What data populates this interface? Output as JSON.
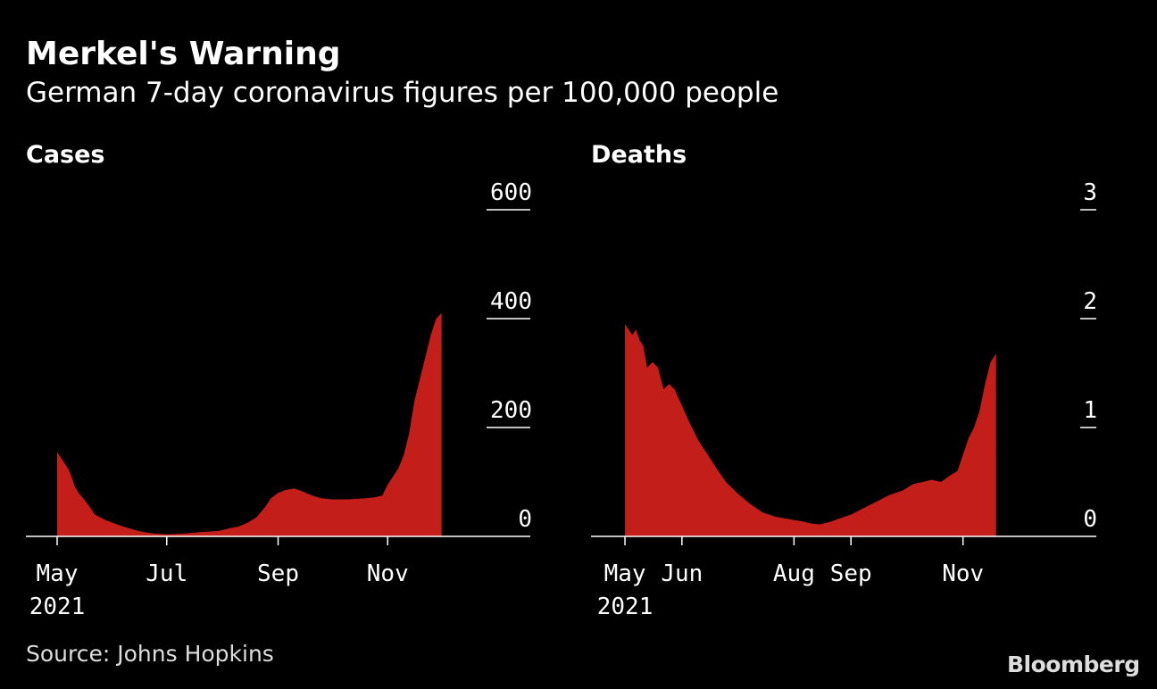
{
  "title": "Merkel's Warning",
  "subtitle": "German 7-day coronavirus figures per 100,000 people",
  "source": "Source: Johns Hopkins",
  "brand": "Bloomberg",
  "colors": {
    "fill": "#c41e1a",
    "background": "#000000",
    "text": "#ffffff"
  },
  "chart_data": [
    {
      "type": "area",
      "title": "Cases",
      "ylim": [
        0,
        600
      ],
      "yticks": [
        0,
        200,
        400,
        600
      ],
      "y_tick_labels": [
        "0",
        "200",
        "400",
        "600"
      ],
      "grid": false,
      "xticks": [
        {
          "date": "2021-05-01",
          "label": "May",
          "sublabel": "2021"
        },
        {
          "date": "2021-07-01",
          "label": "Jul",
          "sublabel": ""
        },
        {
          "date": "2021-09-01",
          "label": "Sep",
          "sublabel": ""
        },
        {
          "date": "2021-11-01",
          "label": "Nov",
          "sublabel": ""
        }
      ],
      "xlim": [
        "2021-05-01",
        "2021-12-31"
      ],
      "series": [
        {
          "x": [
            "2021-05-01",
            "2021-05-03",
            "2021-05-05",
            "2021-05-07",
            "2021-05-09",
            "2021-05-11",
            "2021-05-13",
            "2021-05-16",
            "2021-05-19",
            "2021-05-22",
            "2021-05-25",
            "2021-05-28",
            "2021-06-01",
            "2021-06-05",
            "2021-06-10",
            "2021-06-15",
            "2021-06-20",
            "2021-06-25",
            "2021-07-01",
            "2021-07-10",
            "2021-07-20",
            "2021-07-30",
            "2021-08-05",
            "2021-08-10",
            "2021-08-15",
            "2021-08-20",
            "2021-08-25",
            "2021-08-28",
            "2021-09-01",
            "2021-09-05",
            "2021-09-10",
            "2021-09-15",
            "2021-09-20",
            "2021-09-25",
            "2021-10-01",
            "2021-10-10",
            "2021-10-20",
            "2021-10-25",
            "2021-10-29",
            "2021-11-01",
            "2021-11-04",
            "2021-11-07",
            "2021-11-10",
            "2021-11-13",
            "2021-11-16",
            "2021-11-19",
            "2021-11-22",
            "2021-11-25",
            "2021-11-28",
            "2021-12-01"
          ],
          "y": [
            155,
            145,
            135,
            125,
            110,
            90,
            80,
            68,
            55,
            40,
            35,
            30,
            25,
            20,
            15,
            10,
            7,
            5,
            4,
            5,
            8,
            10,
            15,
            18,
            25,
            35,
            55,
            70,
            80,
            85,
            88,
            82,
            75,
            70,
            68,
            68,
            70,
            72,
            75,
            95,
            110,
            125,
            150,
            190,
            250,
            290,
            330,
            370,
            400,
            410
          ]
        }
      ]
    },
    {
      "type": "area",
      "title": "Deaths",
      "ylim": [
        0,
        3
      ],
      "yticks": [
        0,
        1,
        2,
        3
      ],
      "y_tick_labels": [
        "0",
        "1",
        "2",
        "3"
      ],
      "grid": false,
      "xticks": [
        {
          "date": "2021-05-01",
          "label": "May",
          "sublabel": "2021"
        },
        {
          "date": "2021-06-01",
          "label": "Jun",
          "sublabel": ""
        },
        {
          "date": "2021-08-01",
          "label": "Aug",
          "sublabel": ""
        },
        {
          "date": "2021-09-01",
          "label": "Sep",
          "sublabel": ""
        },
        {
          "date": "2021-11-01",
          "label": "Nov",
          "sublabel": ""
        }
      ],
      "xlim": [
        "2021-04-30",
        "2021-12-28"
      ],
      "series": [
        {
          "x": [
            "2021-05-01",
            "2021-05-03",
            "2021-05-05",
            "2021-05-07",
            "2021-05-09",
            "2021-05-11",
            "2021-05-13",
            "2021-05-16",
            "2021-05-19",
            "2021-05-22",
            "2021-05-25",
            "2021-05-28",
            "2021-06-01",
            "2021-06-05",
            "2021-06-10",
            "2021-06-15",
            "2021-06-20",
            "2021-06-25",
            "2021-07-01",
            "2021-07-08",
            "2021-07-15",
            "2021-07-22",
            "2021-07-29",
            "2021-08-01",
            "2021-08-05",
            "2021-08-10",
            "2021-08-15",
            "2021-08-20",
            "2021-08-25",
            "2021-09-01",
            "2021-09-08",
            "2021-09-15",
            "2021-09-22",
            "2021-09-29",
            "2021-10-05",
            "2021-10-10",
            "2021-10-15",
            "2021-10-20",
            "2021-10-25",
            "2021-10-29",
            "2021-11-01",
            "2021-11-04",
            "2021-11-07",
            "2021-11-10",
            "2021-11-13",
            "2021-11-16",
            "2021-11-19"
          ],
          "y": [
            1.95,
            1.9,
            1.85,
            1.9,
            1.8,
            1.75,
            1.55,
            1.6,
            1.55,
            1.35,
            1.4,
            1.35,
            1.2,
            1.05,
            0.88,
            0.75,
            0.62,
            0.5,
            0.4,
            0.3,
            0.22,
            0.18,
            0.16,
            0.15,
            0.14,
            0.12,
            0.11,
            0.13,
            0.16,
            0.2,
            0.26,
            0.32,
            0.38,
            0.42,
            0.48,
            0.5,
            0.52,
            0.5,
            0.56,
            0.6,
            0.75,
            0.9,
            1.0,
            1.15,
            1.4,
            1.6,
            1.68
          ]
        }
      ]
    }
  ]
}
